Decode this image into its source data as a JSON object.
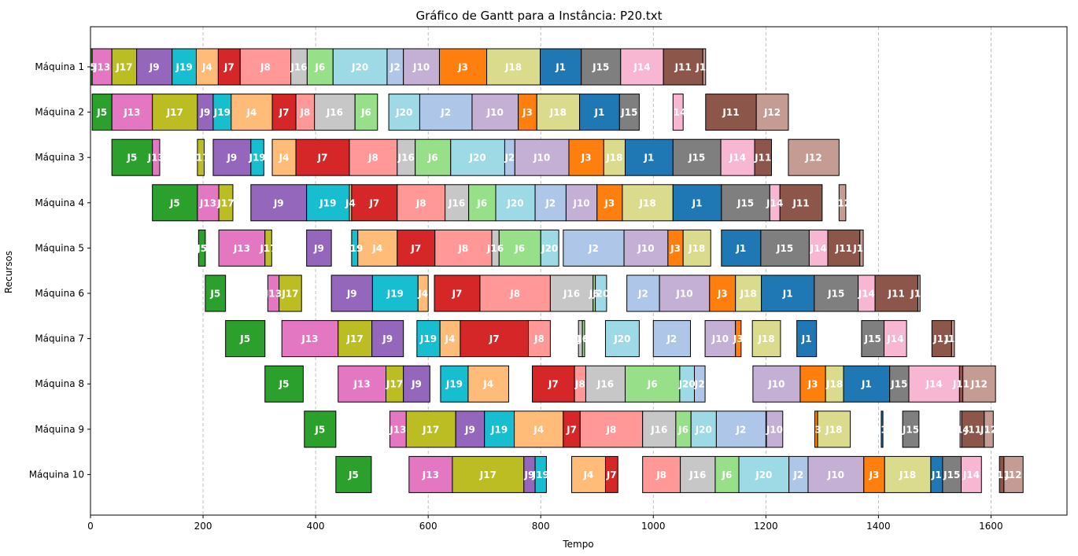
{
  "chart_data": {
    "type": "gantt",
    "title": "Gráfico de Gantt para a Instância: P20.txt",
    "xlabel": "Tempo",
    "ylabel": "Recursos",
    "xlim": [
      0,
      1735
    ],
    "xticks": [
      0,
      200,
      400,
      600,
      800,
      1000,
      1200,
      1400,
      1600
    ],
    "grid": "vertical dashed",
    "machines": [
      "Máquina 1",
      "Máquina 2",
      "Máquina 3",
      "Máquina 4",
      "Máquina 5",
      "Máquina 6",
      "Máquina 7",
      "Máquina 8",
      "Máquina 9",
      "Máquina 10"
    ],
    "job_colors": {
      "J1": "#1f77b4",
      "J2": "#aec7e8",
      "J3": "#ff7f0e",
      "J4": "#ffbb78",
      "J5": "#2ca02c",
      "J6": "#98df8a",
      "J7": "#d62728",
      "J8": "#ff9896",
      "J9": "#9467bd",
      "J10": "#c5b0d5",
      "J11": "#8c564b",
      "J12": "#c49c94",
      "J13": "#e377c2",
      "J14": "#f7b6d2",
      "J15": "#7f7f7f",
      "J16": "#c7c7c7",
      "J17": "#bcbd22",
      "J18": "#dbdb8d",
      "J19": "#17becf",
      "J20": "#9edae5"
    },
    "tasks": [
      [
        [
          "J5",
          0,
          3
        ],
        [
          "J13",
          3,
          38
        ],
        [
          "J17",
          38,
          82
        ],
        [
          "J9",
          82,
          145
        ],
        [
          "J19",
          145,
          188
        ],
        [
          "J4",
          188,
          227
        ],
        [
          "J7",
          227,
          266
        ],
        [
          "J8",
          266,
          356
        ],
        [
          "J16",
          356,
          385
        ],
        [
          "J6",
          385,
          431
        ],
        [
          "J20",
          431,
          527
        ],
        [
          "J2",
          527,
          556
        ],
        [
          "J10",
          556,
          620
        ],
        [
          "J3",
          620,
          704
        ],
        [
          "J18",
          704,
          799
        ],
        [
          "J1",
          799,
          872
        ],
        [
          "J15",
          872,
          942
        ],
        [
          "J14",
          942,
          1018
        ],
        [
          "J11",
          1018,
          1088
        ],
        [
          "J12",
          1088,
          1093
        ]
      ],
      [
        [
          "J5",
          3,
          38
        ],
        [
          "J13",
          38,
          110
        ],
        [
          "J17",
          110,
          190
        ],
        [
          "J9",
          190,
          218
        ],
        [
          "J19",
          218,
          250
        ],
        [
          "J4",
          250,
          323
        ],
        [
          "J7",
          323,
          365
        ],
        [
          "J8",
          365,
          398
        ],
        [
          "J16",
          398,
          470
        ],
        [
          "J6",
          470,
          510
        ],
        [
          "J20",
          530,
          585
        ],
        [
          "J2",
          585,
          678
        ],
        [
          "J10",
          678,
          760
        ],
        [
          "J3",
          760,
          793
        ],
        [
          "J18",
          793,
          869
        ],
        [
          "J1",
          869,
          940
        ],
        [
          "J15",
          940,
          975
        ],
        [
          "J14",
          1035,
          1053
        ],
        [
          "J11",
          1093,
          1183
        ],
        [
          "J12",
          1183,
          1240
        ]
      ],
      [
        [
          "J5",
          38,
          110
        ],
        [
          "J13",
          110,
          123
        ],
        [
          "J17",
          190,
          202
        ],
        [
          "J9",
          218,
          285
        ],
        [
          "J19",
          285,
          308
        ],
        [
          "J4",
          323,
          365
        ],
        [
          "J7",
          365,
          460
        ],
        [
          "J8",
          460,
          545
        ],
        [
          "J16",
          545,
          577
        ],
        [
          "J6",
          577,
          640
        ],
        [
          "J20",
          640,
          736
        ],
        [
          "J2",
          736,
          754
        ],
        [
          "J10",
          754,
          850
        ],
        [
          "J3",
          850,
          912
        ],
        [
          "J18",
          912,
          950
        ],
        [
          "J1",
          950,
          1035
        ],
        [
          "J15",
          1035,
          1120
        ],
        [
          "J14",
          1120,
          1180
        ],
        [
          "J11",
          1180,
          1210
        ],
        [
          "J12",
          1240,
          1330
        ]
      ],
      [
        [
          "J5",
          110,
          190
        ],
        [
          "J13",
          190,
          228
        ],
        [
          "J17",
          228,
          253
        ],
        [
          "J9",
          285,
          384
        ],
        [
          "J19",
          384,
          460
        ],
        [
          "J4",
          460,
          464
        ],
        [
          "J7",
          464,
          545
        ],
        [
          "J8",
          545,
          630
        ],
        [
          "J16",
          630,
          672
        ],
        [
          "J6",
          672,
          720
        ],
        [
          "J20",
          720,
          790
        ],
        [
          "J2",
          790,
          845
        ],
        [
          "J10",
          845,
          900
        ],
        [
          "J3",
          900,
          945
        ],
        [
          "J18",
          945,
          1035
        ],
        [
          "J1",
          1035,
          1121
        ],
        [
          "J15",
          1121,
          1207
        ],
        [
          "J14",
          1207,
          1225
        ],
        [
          "J11",
          1225,
          1300
        ],
        [
          "J12",
          1330,
          1342
        ]
      ],
      [
        [
          "J5",
          192,
          204
        ],
        [
          "J13",
          228,
          310
        ],
        [
          "J17",
          310,
          322
        ],
        [
          "J9",
          384,
          428
        ],
        [
          "J19",
          464,
          475
        ],
        [
          "J4",
          475,
          545
        ],
        [
          "J7",
          545,
          612
        ],
        [
          "J8",
          612,
          713
        ],
        [
          "J16",
          713,
          726
        ],
        [
          "J6",
          726,
          800
        ],
        [
          "J20",
          800,
          832
        ],
        [
          "J2",
          840,
          948
        ],
        [
          "J10",
          948,
          1026
        ],
        [
          "J3",
          1026,
          1053
        ],
        [
          "J18",
          1053,
          1102
        ],
        [
          "J1",
          1121,
          1191
        ],
        [
          "J15",
          1191,
          1277
        ],
        [
          "J14",
          1277,
          1310
        ],
        [
          "J11",
          1310,
          1367
        ],
        [
          "J12",
          1367,
          1373
        ]
      ],
      [
        [
          "J5",
          204,
          240
        ],
        [
          "J13",
          315,
          335
        ],
        [
          "J17",
          335,
          375
        ],
        [
          "J9",
          428,
          501
        ],
        [
          "J19",
          501,
          582
        ],
        [
          "J4",
          582,
          600
        ],
        [
          "J7",
          611,
          692
        ],
        [
          "J8",
          692,
          817
        ],
        [
          "J16",
          817,
          893
        ],
        [
          "J6",
          893,
          897
        ],
        [
          "J20",
          897,
          917
        ],
        [
          "J2",
          953,
          1011
        ],
        [
          "J10",
          1011,
          1100
        ],
        [
          "J3",
          1100,
          1146
        ],
        [
          "J18",
          1146,
          1192
        ],
        [
          "J1",
          1192,
          1286
        ],
        [
          "J15",
          1286,
          1364
        ],
        [
          "J14",
          1364,
          1394
        ],
        [
          "J11",
          1394,
          1470
        ],
        [
          "J12",
          1470,
          1474
        ]
      ],
      [
        [
          "J5",
          240,
          310
        ],
        [
          "J13",
          340,
          440
        ],
        [
          "J17",
          440,
          500
        ],
        [
          "J9",
          500,
          556
        ],
        [
          "J19",
          580,
          621
        ],
        [
          "J4",
          621,
          657
        ],
        [
          "J7",
          657,
          778
        ],
        [
          "J8",
          778,
          817
        ],
        [
          "J16",
          867,
          874
        ],
        [
          "J6",
          874,
          878
        ],
        [
          "J20",
          915,
          975
        ],
        [
          "J2",
          1000,
          1066
        ],
        [
          "J10",
          1092,
          1146
        ],
        [
          "J3",
          1146,
          1156
        ],
        [
          "J18",
          1176,
          1226
        ],
        [
          "J1",
          1255,
          1290
        ],
        [
          "J15",
          1370,
          1410
        ],
        [
          "J14",
          1410,
          1450
        ],
        [
          "J11",
          1495,
          1530
        ],
        [
          "J12",
          1530,
          1535
        ]
      ],
      [
        [
          "J5",
          310,
          378
        ],
        [
          "J13",
          440,
          525
        ],
        [
          "J17",
          525,
          556
        ],
        [
          "J9",
          556,
          603
        ],
        [
          "J19",
          622,
          671
        ],
        [
          "J4",
          671,
          743
        ],
        [
          "J7",
          785,
          860
        ],
        [
          "J8",
          860,
          880
        ],
        [
          "J16",
          880,
          950
        ],
        [
          "J6",
          950,
          1047
        ],
        [
          "J20",
          1047,
          1073
        ],
        [
          "J2",
          1073,
          1092
        ],
        [
          "J10",
          1177,
          1261
        ],
        [
          "J3",
          1261,
          1306
        ],
        [
          "J18",
          1306,
          1338
        ],
        [
          "J1",
          1338,
          1420
        ],
        [
          "J15",
          1420,
          1454
        ],
        [
          "J14",
          1454,
          1544
        ],
        [
          "J11",
          1544,
          1550
        ],
        [
          "J12",
          1550,
          1608
        ]
      ],
      [
        [
          "J5",
          380,
          436
        ],
        [
          "J13",
          532,
          561
        ],
        [
          "J17",
          561,
          649
        ],
        [
          "J9",
          649,
          700
        ],
        [
          "J19",
          700,
          753
        ],
        [
          "J4",
          753,
          840
        ],
        [
          "J7",
          840,
          870
        ],
        [
          "J8",
          870,
          981
        ],
        [
          "J16",
          981,
          1040
        ],
        [
          "J6",
          1040,
          1067
        ],
        [
          "J20",
          1067,
          1112
        ],
        [
          "J2",
          1112,
          1200
        ],
        [
          "J10",
          1201,
          1230
        ],
        [
          "J3",
          1287,
          1292
        ],
        [
          "J18",
          1292,
          1350
        ],
        [
          "J1",
          1405,
          1408
        ],
        [
          "J15",
          1443,
          1472
        ],
        [
          "J14",
          1545,
          1548
        ],
        [
          "J11",
          1548,
          1588
        ],
        [
          "J12",
          1588,
          1604
        ]
      ],
      [
        [
          "J5",
          436,
          499
        ],
        [
          "J13",
          566,
          643
        ],
        [
          "J17",
          643,
          770
        ],
        [
          "J9",
          770,
          790
        ],
        [
          "J19",
          790,
          810
        ],
        [
          "J4",
          855,
          915
        ],
        [
          "J7",
          915,
          937
        ],
        [
          "J8",
          981,
          1048
        ],
        [
          "J16",
          1048,
          1110
        ],
        [
          "J6",
          1110,
          1152
        ],
        [
          "J20",
          1152,
          1241
        ],
        [
          "J2",
          1241,
          1275
        ],
        [
          "J10",
          1275,
          1374
        ],
        [
          "J3",
          1374,
          1411
        ],
        [
          "J18",
          1411,
          1493
        ],
        [
          "J1",
          1493,
          1514
        ],
        [
          "J15",
          1514,
          1547
        ],
        [
          "J14",
          1547,
          1583
        ],
        [
          "J11",
          1615,
          1623
        ],
        [
          "J12",
          1623,
          1657
        ]
      ]
    ]
  }
}
